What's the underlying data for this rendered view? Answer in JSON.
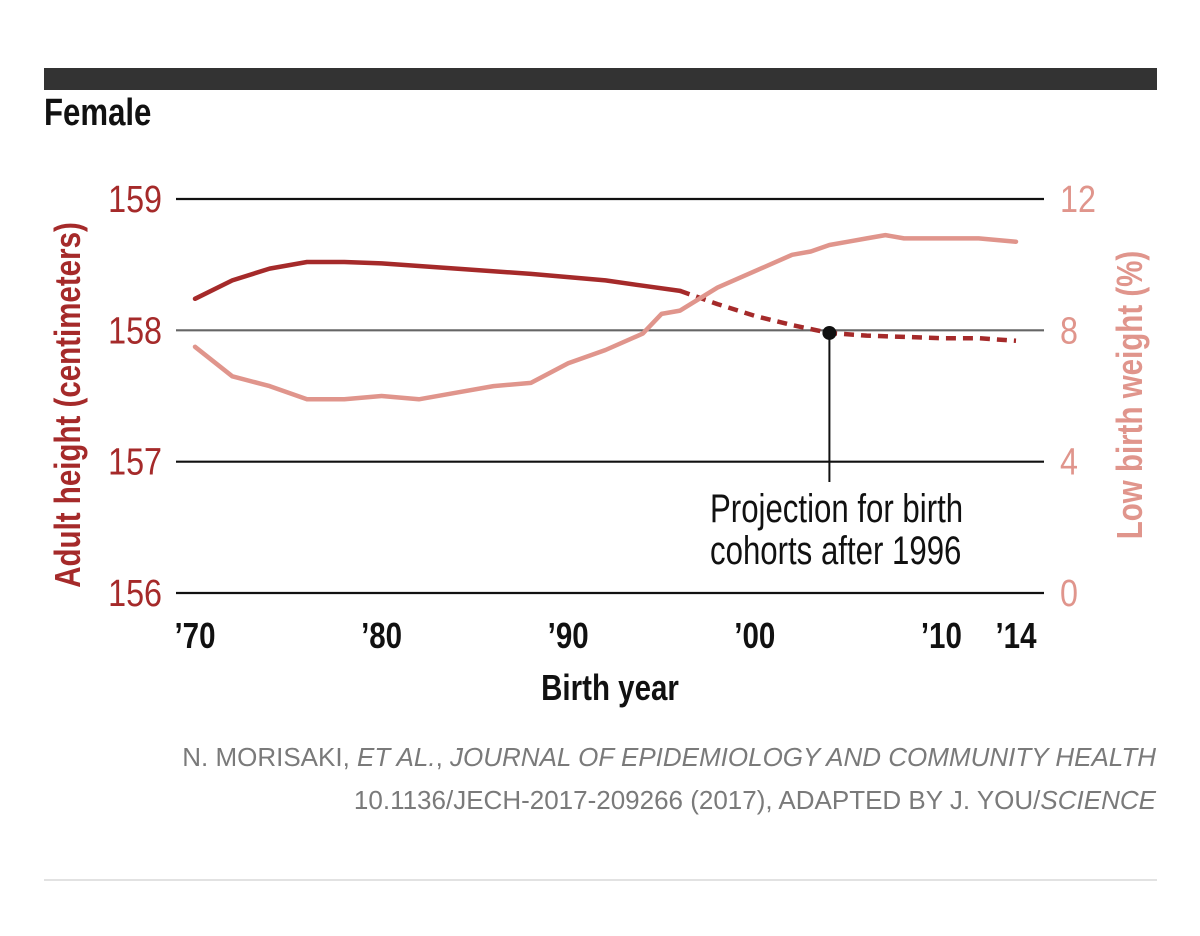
{
  "panel_title": "Female",
  "chart_data": {
    "type": "line",
    "xlabel": "Birth year",
    "x_ticks": [
      {
        "year": 1970,
        "label": "’70"
      },
      {
        "year": 1980,
        "label": "’80"
      },
      {
        "year": 1990,
        "label": "’90"
      },
      {
        "year": 2000,
        "label": "’00"
      },
      {
        "year": 2010,
        "label": "’10"
      },
      {
        "year": 2014,
        "label": "’14"
      }
    ],
    "xlim": [
      1970,
      2014
    ],
    "ylabel_left": "Adult height (centimeters)",
    "ylim_left": [
      156,
      159
    ],
    "y_ticks_left": [
      156,
      157,
      158,
      159
    ],
    "ylabel_right": "Low birth weight (%)",
    "ylim_right": [
      0,
      12
    ],
    "y_ticks_right": [
      0,
      4,
      8,
      12
    ],
    "grid": true,
    "series": [
      {
        "axis": "left",
        "color": "#a52a2a",
        "x": [
          1970,
          1972,
          1974,
          1976,
          1978,
          1980,
          1984,
          1988,
          1992,
          1994,
          1996
        ],
        "values": [
          158.24,
          158.38,
          158.47,
          158.52,
          158.52,
          158.51,
          158.47,
          158.43,
          158.38,
          158.34,
          158.3
        ]
      },
      {
        "axis": "left",
        "color": "#a52a2a",
        "style": "dashed",
        "x": [
          1996,
          1998,
          2000,
          2002,
          2004,
          2006,
          2008,
          2010,
          2012,
          2014
        ],
        "values": [
          158.3,
          158.2,
          158.11,
          158.04,
          157.98,
          157.96,
          157.95,
          157.94,
          157.94,
          157.92
        ]
      },
      {
        "axis": "right",
        "color": "#e0958c",
        "x": [
          1970,
          1972,
          1974,
          1976,
          1978,
          1980,
          1982,
          1984,
          1986,
          1988,
          1990,
          1992,
          1994,
          1995,
          1996,
          1998,
          2000,
          2002,
          2003,
          2004,
          2005,
          2006,
          2007,
          2008,
          2010,
          2012,
          2014
        ],
        "values": [
          7.5,
          6.6,
          6.3,
          5.9,
          5.9,
          6.0,
          5.9,
          6.1,
          6.3,
          6.4,
          7.0,
          7.4,
          7.9,
          8.5,
          8.6,
          9.3,
          9.8,
          10.3,
          10.4,
          10.6,
          10.7,
          10.8,
          10.9,
          10.8,
          10.8,
          10.8,
          10.7
        ]
      }
    ],
    "annotation": {
      "text_lines": [
        "Projection for birth",
        "cohorts after 1996"
      ],
      "x": 2004,
      "y": 157.98
    }
  },
  "credit": {
    "line1_a": "N. MORISAKI, ",
    "line1_b": "ET AL.",
    "line1_c": ", ",
    "line1_d": "JOURNAL OF EPIDEMIOLOGY AND COMMUNITY HEALTH",
    "line2_a": "10.1136/JECH-2017-209266 (2017), ADAPTED BY J. YOU/",
    "line2_b": "SCIENCE"
  },
  "colors": {
    "height_axis": "#a52a2a",
    "lbw_axis": "#e0958c",
    "grid": "#111111",
    "credit": "#7a7a7a"
  }
}
